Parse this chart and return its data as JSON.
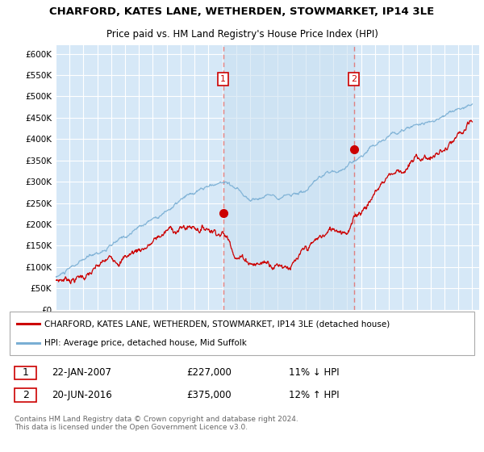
{
  "title": "CHARFORD, KATES LANE, WETHERDEN, STOWMARKET, IP14 3LE",
  "subtitle": "Price paid vs. HM Land Registry's House Price Index (HPI)",
  "ylim": [
    0,
    620000
  ],
  "yticks": [
    0,
    50000,
    100000,
    150000,
    200000,
    250000,
    300000,
    350000,
    400000,
    450000,
    500000,
    550000,
    600000
  ],
  "ytick_labels": [
    "£0",
    "£50K",
    "£100K",
    "£150K",
    "£200K",
    "£250K",
    "£300K",
    "£350K",
    "£400K",
    "£450K",
    "£500K",
    "£550K",
    "£600K"
  ],
  "plot_bg_color": "#d6e8f7",
  "grid_color": "#ffffff",
  "sale1_date": 2007.07,
  "sale1_price": 227000,
  "sale2_date": 2016.47,
  "sale2_price": 375000,
  "sale1_text": "22-JAN-2007",
  "sale1_amount": "£227,000",
  "sale1_hpi": "11% ↓ HPI",
  "sale2_text": "20-JUN-2016",
  "sale2_amount": "£375,000",
  "sale2_hpi": "12% ↑ HPI",
  "legend_line1": "CHARFORD, KATES LANE, WETHERDEN, STOWMARKET, IP14 3LE (detached house)",
  "legend_line2": "HPI: Average price, detached house, Mid Suffolk",
  "footer": "Contains HM Land Registry data © Crown copyright and database right 2024.\nThis data is licensed under the Open Government Licence v3.0.",
  "red_color": "#cc0000",
  "blue_color": "#7aafd4",
  "vline_color": "#e08080",
  "shade_color": "#c8dff0",
  "title_fontsize": 9.5,
  "subtitle_fontsize": 8.5
}
